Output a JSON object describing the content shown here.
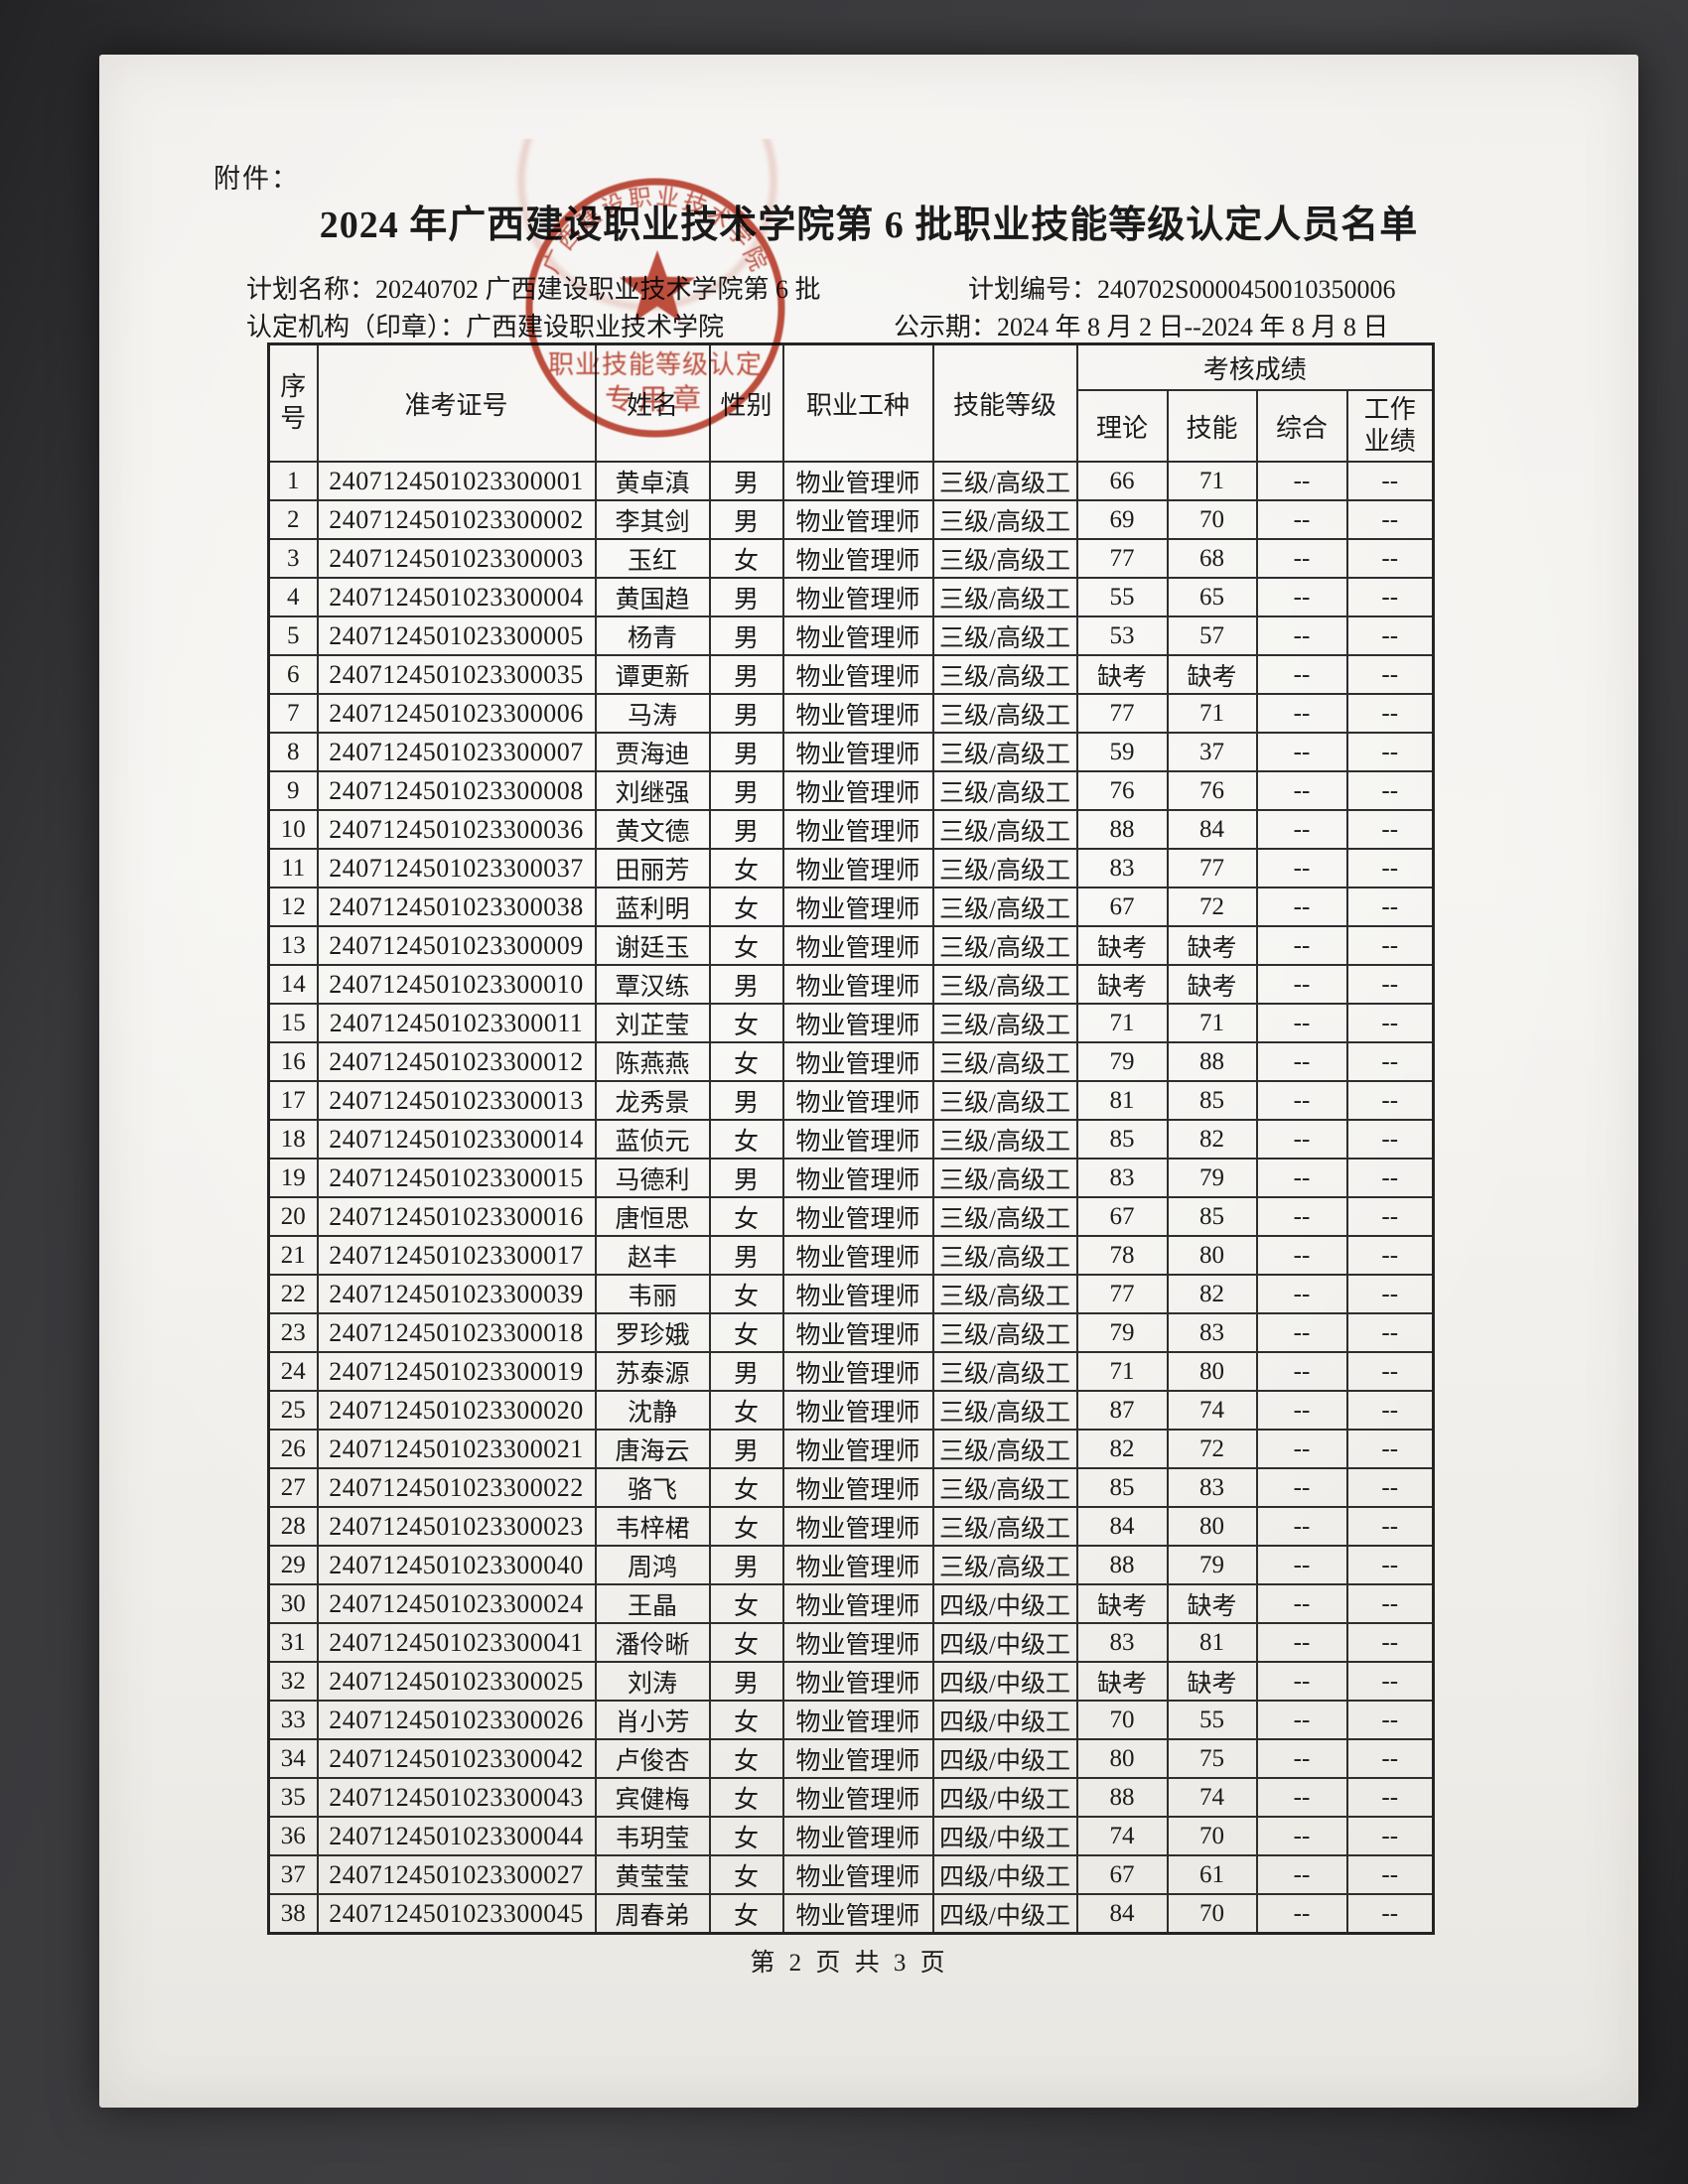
{
  "page": {
    "attachment_label": "附件：",
    "title": "2024 年广西建设职业技术学院第 6 批职业技能等级认定人员名单",
    "footer": "第 2 页 共 3 页"
  },
  "meta": {
    "plan_name_label": "计划名称：",
    "plan_name": "20240702 广西建设职业技术学院第 6 批",
    "plan_no_label": "计划编号：",
    "plan_no": "240702S0000450010350006",
    "org_label": "认定机构（印章）：",
    "org": "广西建设职业技术学院",
    "period_label": "公示期：",
    "period": "2024 年 8 月 2 日--2024 年 8 月 8 日"
  },
  "stamp": {
    "arc_text": "广西建设职业技术学院",
    "line1": "职业技能等级认定",
    "line2": "专用章",
    "color": "#b8321f"
  },
  "table": {
    "headers": {
      "seq_line1": "序",
      "seq_line2": "号",
      "ticket": "准考证号",
      "name": "姓名",
      "gender": "性别",
      "occupation": "职业工种",
      "level": "技能等级",
      "score_group": "考核成绩",
      "theory": "理论",
      "skill": "技能",
      "comprehensive": "综合",
      "work_line1": "工作",
      "work_line2": "业绩"
    },
    "rows": [
      [
        "1",
        "2407124501023300001",
        "黄卓滇",
        "男",
        "物业管理师",
        "三级/高级工",
        "66",
        "71",
        "--",
        "--"
      ],
      [
        "2",
        "2407124501023300002",
        "李其剑",
        "男",
        "物业管理师",
        "三级/高级工",
        "69",
        "70",
        "--",
        "--"
      ],
      [
        "3",
        "2407124501023300003",
        "玉红",
        "女",
        "物业管理师",
        "三级/高级工",
        "77",
        "68",
        "--",
        "--"
      ],
      [
        "4",
        "2407124501023300004",
        "黄国趋",
        "男",
        "物业管理师",
        "三级/高级工",
        "55",
        "65",
        "--",
        "--"
      ],
      [
        "5",
        "2407124501023300005",
        "杨青",
        "男",
        "物业管理师",
        "三级/高级工",
        "53",
        "57",
        "--",
        "--"
      ],
      [
        "6",
        "2407124501023300035",
        "谭更新",
        "男",
        "物业管理师",
        "三级/高级工",
        "缺考",
        "缺考",
        "--",
        "--"
      ],
      [
        "7",
        "2407124501023300006",
        "马涛",
        "男",
        "物业管理师",
        "三级/高级工",
        "77",
        "71",
        "--",
        "--"
      ],
      [
        "8",
        "2407124501023300007",
        "贾海迪",
        "男",
        "物业管理师",
        "三级/高级工",
        "59",
        "37",
        "--",
        "--"
      ],
      [
        "9",
        "2407124501023300008",
        "刘继强",
        "男",
        "物业管理师",
        "三级/高级工",
        "76",
        "76",
        "--",
        "--"
      ],
      [
        "10",
        "2407124501023300036",
        "黄文德",
        "男",
        "物业管理师",
        "三级/高级工",
        "88",
        "84",
        "--",
        "--"
      ],
      [
        "11",
        "2407124501023300037",
        "田丽芳",
        "女",
        "物业管理师",
        "三级/高级工",
        "83",
        "77",
        "--",
        "--"
      ],
      [
        "12",
        "2407124501023300038",
        "蓝利明",
        "女",
        "物业管理师",
        "三级/高级工",
        "67",
        "72",
        "--",
        "--"
      ],
      [
        "13",
        "2407124501023300009",
        "谢廷玉",
        "女",
        "物业管理师",
        "三级/高级工",
        "缺考",
        "缺考",
        "--",
        "--"
      ],
      [
        "14",
        "2407124501023300010",
        "覃汉练",
        "男",
        "物业管理师",
        "三级/高级工",
        "缺考",
        "缺考",
        "--",
        "--"
      ],
      [
        "15",
        "2407124501023300011",
        "刘芷莹",
        "女",
        "物业管理师",
        "三级/高级工",
        "71",
        "71",
        "--",
        "--"
      ],
      [
        "16",
        "2407124501023300012",
        "陈燕燕",
        "女",
        "物业管理师",
        "三级/高级工",
        "79",
        "88",
        "--",
        "--"
      ],
      [
        "17",
        "2407124501023300013",
        "龙秀景",
        "男",
        "物业管理师",
        "三级/高级工",
        "81",
        "85",
        "--",
        "--"
      ],
      [
        "18",
        "2407124501023300014",
        "蓝侦元",
        "女",
        "物业管理师",
        "三级/高级工",
        "85",
        "82",
        "--",
        "--"
      ],
      [
        "19",
        "2407124501023300015",
        "马德利",
        "男",
        "物业管理师",
        "三级/高级工",
        "83",
        "79",
        "--",
        "--"
      ],
      [
        "20",
        "2407124501023300016",
        "唐恒思",
        "女",
        "物业管理师",
        "三级/高级工",
        "67",
        "85",
        "--",
        "--"
      ],
      [
        "21",
        "2407124501023300017",
        "赵丰",
        "男",
        "物业管理师",
        "三级/高级工",
        "78",
        "80",
        "--",
        "--"
      ],
      [
        "22",
        "2407124501023300039",
        "韦丽",
        "女",
        "物业管理师",
        "三级/高级工",
        "77",
        "82",
        "--",
        "--"
      ],
      [
        "23",
        "2407124501023300018",
        "罗珍娥",
        "女",
        "物业管理师",
        "三级/高级工",
        "79",
        "83",
        "--",
        "--"
      ],
      [
        "24",
        "2407124501023300019",
        "苏泰源",
        "男",
        "物业管理师",
        "三级/高级工",
        "71",
        "80",
        "--",
        "--"
      ],
      [
        "25",
        "2407124501023300020",
        "沈静",
        "女",
        "物业管理师",
        "三级/高级工",
        "87",
        "74",
        "--",
        "--"
      ],
      [
        "26",
        "2407124501023300021",
        "唐海云",
        "男",
        "物业管理师",
        "三级/高级工",
        "82",
        "72",
        "--",
        "--"
      ],
      [
        "27",
        "2407124501023300022",
        "骆飞",
        "女",
        "物业管理师",
        "三级/高级工",
        "85",
        "83",
        "--",
        "--"
      ],
      [
        "28",
        "2407124501023300023",
        "韦梓桾",
        "女",
        "物业管理师",
        "三级/高级工",
        "84",
        "80",
        "--",
        "--"
      ],
      [
        "29",
        "2407124501023300040",
        "周鸿",
        "男",
        "物业管理师",
        "三级/高级工",
        "88",
        "79",
        "--",
        "--"
      ],
      [
        "30",
        "2407124501023300024",
        "王晶",
        "女",
        "物业管理师",
        "四级/中级工",
        "缺考",
        "缺考",
        "--",
        "--"
      ],
      [
        "31",
        "2407124501023300041",
        "潘伶晰",
        "女",
        "物业管理师",
        "四级/中级工",
        "83",
        "81",
        "--",
        "--"
      ],
      [
        "32",
        "2407124501023300025",
        "刘涛",
        "男",
        "物业管理师",
        "四级/中级工",
        "缺考",
        "缺考",
        "--",
        "--"
      ],
      [
        "33",
        "2407124501023300026",
        "肖小芳",
        "女",
        "物业管理师",
        "四级/中级工",
        "70",
        "55",
        "--",
        "--"
      ],
      [
        "34",
        "2407124501023300042",
        "卢俊杏",
        "女",
        "物业管理师",
        "四级/中级工",
        "80",
        "75",
        "--",
        "--"
      ],
      [
        "35",
        "2407124501023300043",
        "宾健梅",
        "女",
        "物业管理师",
        "四级/中级工",
        "88",
        "74",
        "--",
        "--"
      ],
      [
        "36",
        "2407124501023300044",
        "韦玥莹",
        "女",
        "物业管理师",
        "四级/中级工",
        "74",
        "70",
        "--",
        "--"
      ],
      [
        "37",
        "2407124501023300027",
        "黄莹莹",
        "女",
        "物业管理师",
        "四级/中级工",
        "67",
        "61",
        "--",
        "--"
      ],
      [
        "38",
        "2407124501023300045",
        "周春弟",
        "女",
        "物业管理师",
        "四级/中级工",
        "84",
        "70",
        "--",
        "--"
      ]
    ]
  }
}
